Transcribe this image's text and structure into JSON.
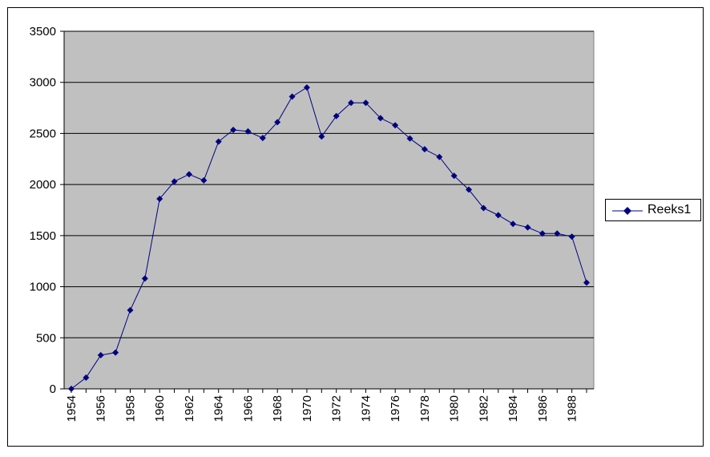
{
  "chart_data": {
    "type": "line",
    "title": "",
    "xlabel": "",
    "ylabel": "",
    "x": [
      1954,
      1955,
      1956,
      1957,
      1958,
      1959,
      1960,
      1961,
      1962,
      1963,
      1964,
      1965,
      1966,
      1967,
      1968,
      1969,
      1970,
      1971,
      1972,
      1973,
      1974,
      1975,
      1976,
      1977,
      1978,
      1979,
      1980,
      1981,
      1982,
      1983,
      1984,
      1985,
      1986,
      1987,
      1988,
      1989
    ],
    "series": [
      {
        "name": "Reeks1",
        "color": "#000080",
        "marker": "diamond",
        "values": [
          0,
          110,
          330,
          355,
          770,
          1080,
          1860,
          2030,
          2100,
          2040,
          2420,
          2535,
          2520,
          2455,
          2610,
          2860,
          2950,
          2470,
          2670,
          2800,
          2800,
          2650,
          2580,
          2450,
          2345,
          2270,
          2085,
          1950,
          1770,
          1700,
          1615,
          1580,
          1520,
          1520,
          1490,
          1040
        ]
      }
    ],
    "xticks": [
      "1954",
      "1956",
      "1958",
      "1960",
      "1962",
      "1964",
      "1966",
      "1968",
      "1970",
      "1972",
      "1974",
      "1976",
      "1978",
      "1980",
      "1982",
      "1984",
      "1986",
      "1988"
    ],
    "yticks": [
      "0",
      "500",
      "1000",
      "1500",
      "2000",
      "2500",
      "3000",
      "3500"
    ],
    "ylim": [
      0,
      3500
    ],
    "grid": true,
    "plot_background": "#c0c0c0",
    "legend_position": "right"
  }
}
